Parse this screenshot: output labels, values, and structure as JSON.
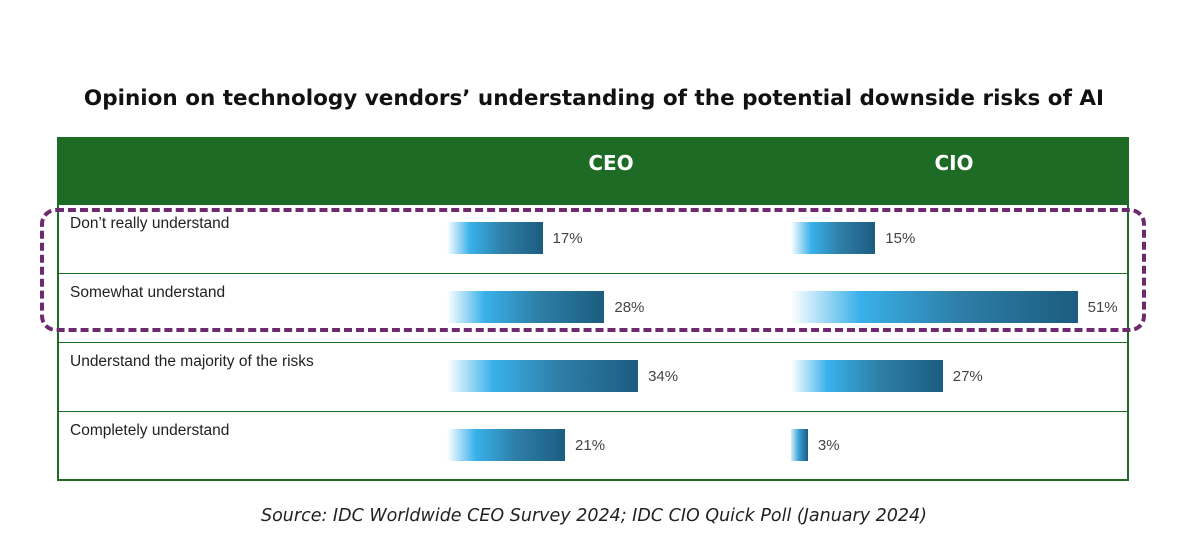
{
  "chart_data": {
    "type": "bar",
    "orientation": "horizontal",
    "title": "Opinion on technology vendors’ understanding of the potential downside risks of AI",
    "categories": [
      "Don’t really understand",
      "Somewhat understand",
      "Understand the majority of the risks",
      "Completely understand"
    ],
    "series": [
      {
        "name": "CEO",
        "values": [
          17,
          28,
          34,
          21
        ]
      },
      {
        "name": "CIO",
        "values": [
          15,
          51,
          27,
          3
        ]
      }
    ],
    "value_labels": {
      "CEO": [
        "17%",
        "28%",
        "34%",
        "21%"
      ],
      "CIO": [
        "15%",
        "51%",
        "27%",
        "3%"
      ]
    },
    "unit": "%",
    "highlighted_categories": [
      "Don’t really understand",
      "Somewhat understand"
    ],
    "grid": false,
    "legend": "none"
  },
  "source": "Source: IDC Worldwide CEO Survey 2024; IDC CIO Quick Poll (January 2024)",
  "colors": {
    "header": "#1e6b25",
    "bar_dark": "#1c5c80",
    "bar_light": "#39b1ea",
    "highlight": "#6e2a6e"
  }
}
